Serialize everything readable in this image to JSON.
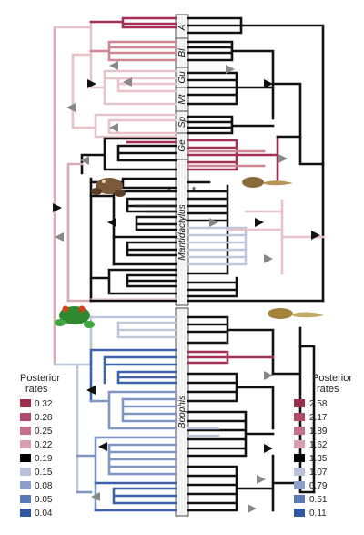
{
  "center_labels": {
    "clades": [
      {
        "key": "A",
        "label": "A"
      },
      {
        "key": "Bl",
        "label": "Bl"
      },
      {
        "key": "Gu",
        "label": "Gu"
      },
      {
        "key": "Mt",
        "label": "Mt"
      },
      {
        "key": "Sp",
        "label": "Sp"
      },
      {
        "key": "Ge",
        "label": "Ge"
      },
      {
        "key": "Man",
        "label": "Mantidactylus"
      },
      {
        "key": "Boo",
        "label": "Boophis"
      }
    ],
    "star_symbol": "*"
  },
  "legend_left": {
    "title_line1": "Posterior",
    "title_line2": "rates",
    "items": [
      {
        "label": "0.32",
        "color": "#9c2d4e"
      },
      {
        "label": "0.28",
        "color": "#b04a69"
      },
      {
        "label": "0.25",
        "color": "#c67089"
      },
      {
        "label": "0.22",
        "color": "#d89fae"
      },
      {
        "label": "0.19",
        "color": "#000000"
      },
      {
        "label": "0.15",
        "color": "#b8c3db"
      },
      {
        "label": "0.08",
        "color": "#8c9fcb"
      },
      {
        "label": "0.05",
        "color": "#5b79b7"
      },
      {
        "label": "0.04",
        "color": "#2f57a3"
      }
    ]
  },
  "legend_right": {
    "title_line1": "Posterior",
    "title_line2": "rates",
    "items": [
      {
        "label": "2.58",
        "color": "#9c2d4e"
      },
      {
        "label": "2.17",
        "color": "#b04a69"
      },
      {
        "label": "1.89",
        "color": "#c67089"
      },
      {
        "label": "1.62",
        "color": "#d89fae"
      },
      {
        "label": "1.35",
        "color": "#000000"
      },
      {
        "label": "1.07",
        "color": "#b8c3db"
      },
      {
        "label": "0.79",
        "color": "#8c9fcb"
      },
      {
        "label": "0.51",
        "color": "#5b79b7"
      },
      {
        "label": "0.11",
        "color": "#2f57a3"
      }
    ]
  },
  "colors": {
    "dark": "#111111",
    "pink_light": "#e7c3c9",
    "pink_mid": "#cf8596",
    "red": "#a33154",
    "blue_light": "#bcc7de",
    "blue_mid": "#7f95c6",
    "blue_dark": "#3d63ab",
    "node_marker": "#888888"
  },
  "images": [
    {
      "name": "mantella-frog-icon",
      "color": "#7b5a3a"
    },
    {
      "name": "tadpole-brown-icon",
      "color": "#8a6a3a"
    },
    {
      "name": "tree-frog-green-icon",
      "color": "#2f8a2f"
    },
    {
      "name": "tadpole-gold-icon",
      "color": "#a3843a"
    }
  ]
}
